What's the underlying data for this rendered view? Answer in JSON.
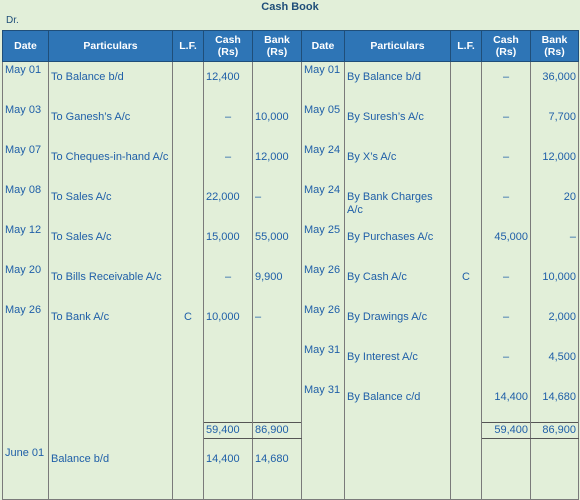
{
  "title": "Cash Book",
  "dr_label": "Dr.",
  "headers": {
    "date": "Date",
    "particulars": "Particulars",
    "lf": "L.F.",
    "cash": "Cash (Rs)",
    "bank": "Bank (Rs)"
  },
  "left": [
    {
      "date": "May 01",
      "particulars": "To Balance b/d",
      "lf": "",
      "cash": "12,400",
      "bank": ""
    },
    {
      "date": "May 03",
      "particulars": "To Ganesh’s A/c",
      "lf": "",
      "cash": "–",
      "bank": "10,000"
    },
    {
      "date": "May 07",
      "particulars": "To Cheques-in-hand A/c",
      "lf": "",
      "cash": "–",
      "bank": "12,000"
    },
    {
      "date": "May 08",
      "particulars": "To Sales A/c",
      "lf": "",
      "cash": "22,000",
      "bank": "–"
    },
    {
      "date": "May 12",
      "particulars": "To Sales A/c",
      "lf": "",
      "cash": "15,000",
      "bank": "55,000"
    },
    {
      "date": "May 20",
      "particulars": "To Bills Receivable A/c",
      "lf": "",
      "cash": "–",
      "bank": "9,900"
    },
    {
      "date": "May 26",
      "particulars": "To Bank A/c",
      "lf": "C",
      "cash": "10,000",
      "bank": "–"
    },
    {
      "date": "",
      "particulars": "",
      "lf": "",
      "cash": "",
      "bank": ""
    },
    {
      "date": "",
      "particulars": "",
      "lf": "",
      "cash": "",
      "bank": ""
    }
  ],
  "right": [
    {
      "date": "May 01",
      "particulars": "By Balance b/d",
      "lf": "",
      "cash": "–",
      "bank": "36,000"
    },
    {
      "date": "May 05",
      "particulars": "By Suresh’s A/c",
      "lf": "",
      "cash": "–",
      "bank": "7,700"
    },
    {
      "date": "May 24",
      "particulars": "By X’s A/c",
      "lf": "",
      "cash": "–",
      "bank": "12,000"
    },
    {
      "date": "May 24",
      "particulars": "By Bank Charges A/c",
      "lf": "",
      "cash": "–",
      "bank": "20"
    },
    {
      "date": "May 25",
      "particulars": "By Purchases A/c",
      "lf": "",
      "cash": "45,000",
      "bank": "–"
    },
    {
      "date": "May 26",
      "particulars": "By Cash A/c",
      "lf": "C",
      "cash": "–",
      "bank": "10,000"
    },
    {
      "date": "May 26",
      "particulars": "By Drawings A/c",
      "lf": "",
      "cash": "–",
      "bank": "2,000"
    },
    {
      "date": "May 31",
      "particulars": "By Interest A/c",
      "lf": "",
      "cash": "–",
      "bank": "4,500"
    },
    {
      "date": "May 31",
      "particulars": "By Balance c/d",
      "lf": "",
      "cash": "14,400",
      "bank": "14,680"
    }
  ],
  "totals": {
    "left_cash": "59,400",
    "left_bank": "86,900",
    "right_cash": "59,400",
    "right_bank": "86,900"
  },
  "carry_down": {
    "date": "June 01",
    "particulars": "Balance b/d",
    "cash": "14,400",
    "bank": "14,680"
  }
}
